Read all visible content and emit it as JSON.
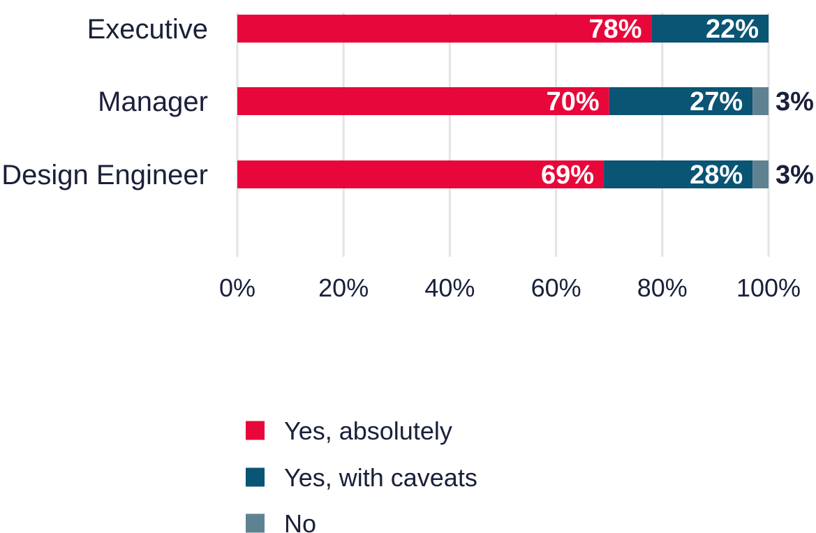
{
  "chart_data": {
    "type": "bar",
    "orientation": "horizontal",
    "stacked": true,
    "categories": [
      "Executive",
      "Manager",
      "Design Engineer"
    ],
    "series": [
      {
        "name": "Yes, absolutely",
        "color": "#e8073a",
        "values": [
          78,
          70,
          69
        ],
        "labels": [
          "78%",
          "70%",
          "69%"
        ]
      },
      {
        "name": "Yes, with caveats",
        "color": "#0a5474",
        "values": [
          22,
          27,
          28
        ],
        "labels": [
          "22%",
          "27%",
          "28%"
        ]
      },
      {
        "name": "No",
        "color": "#5f8293",
        "values": [
          0,
          3,
          3
        ],
        "labels": [
          "",
          "3%",
          "3%"
        ]
      }
    ],
    "xlim": [
      0,
      100
    ],
    "x_ticks": [
      0,
      20,
      40,
      60,
      80,
      100
    ],
    "x_tick_labels": [
      "0%",
      "20%",
      "40%",
      "60%",
      "80%",
      "100%"
    ],
    "grid": true,
    "legend_position": "bottom"
  }
}
